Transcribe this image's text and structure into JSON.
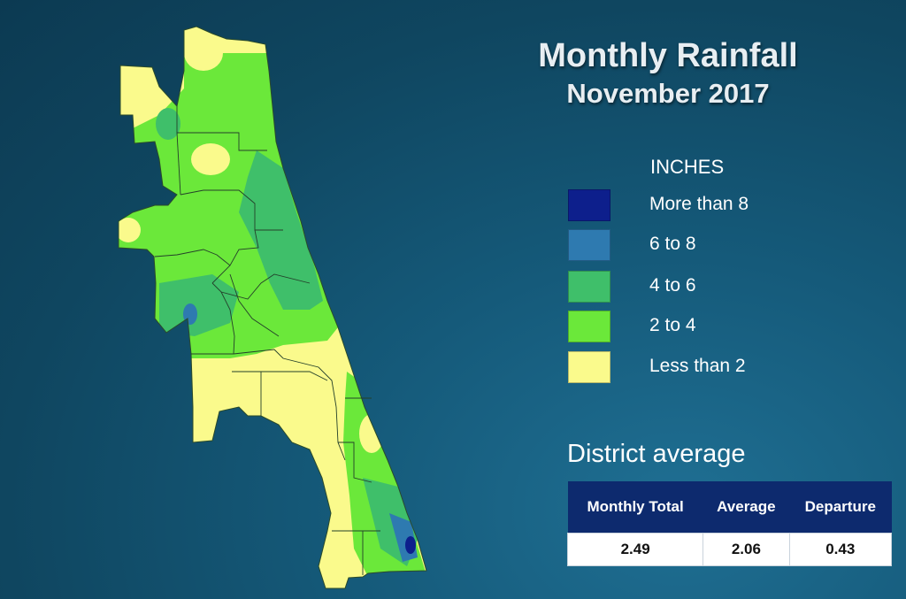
{
  "title": {
    "line1": "Monthly Rainfall",
    "line2": "November 2017"
  },
  "legend": {
    "title": "INCHES",
    "items": [
      {
        "label": "More than 8",
        "color": "#0d1f8c"
      },
      {
        "label": "6 to 8",
        "color": "#2e7ab0"
      },
      {
        "label": "4 to 6",
        "color": "#3fbf6a"
      },
      {
        "label": "2 to 4",
        "color": "#6be83a"
      },
      {
        "label": "Less than 2",
        "color": "#fafa8c"
      }
    ]
  },
  "district": {
    "title": "District average",
    "headers": [
      "Monthly Total",
      "Average",
      "Departure"
    ],
    "values": [
      "2.49",
      "2.06",
      "0.43"
    ]
  }
}
